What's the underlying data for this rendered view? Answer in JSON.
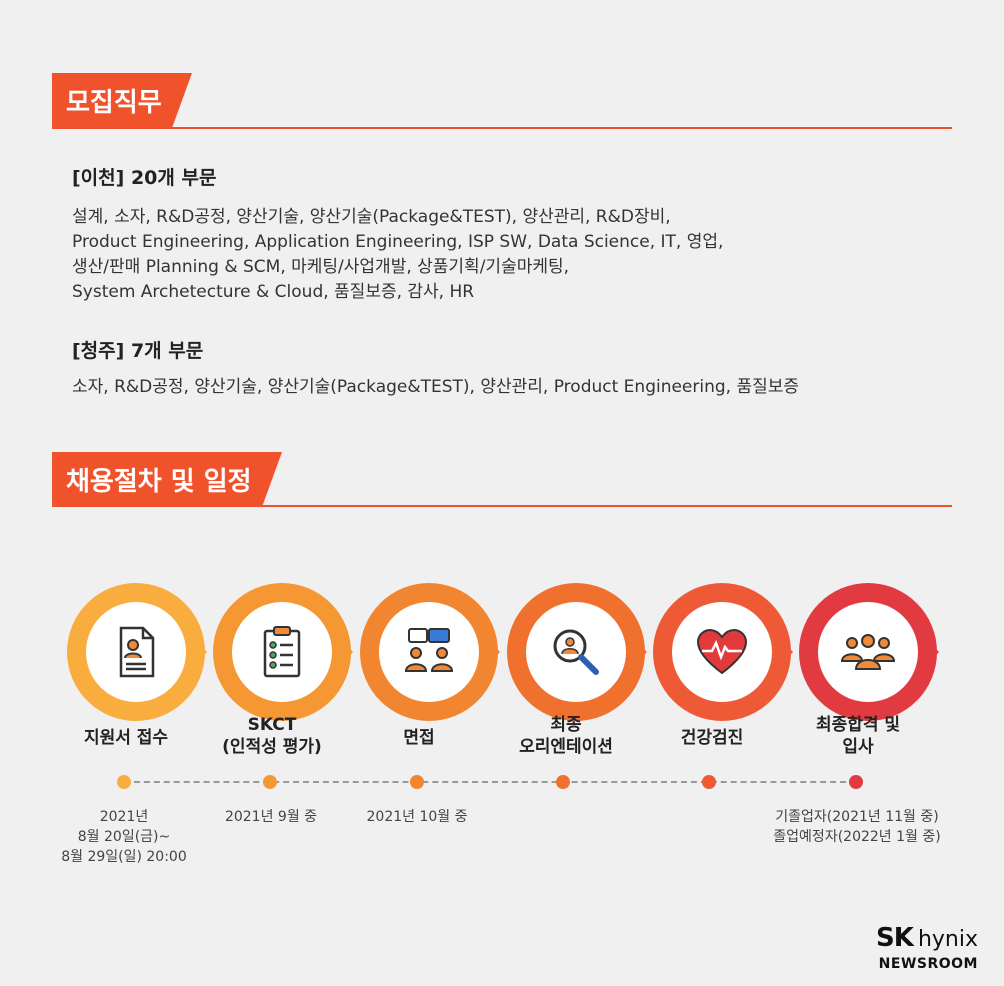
{
  "sections": {
    "jobs_title": "모집직무",
    "process_title": "채용절차 및 일정"
  },
  "icheon": {
    "title": "[이천] 20개 부문",
    "lines": [
      "설계, 소자, R&D공정, 양산기술, 양산기술(Package&TEST), 양산관리, R&D장비,",
      "Product Engineering, Application Engineering, ISP SW, Data Science, IT, 영업,",
      "생산/판매 Planning & SCM, 마케팅/사업개발, 상품기획/기술마케팅,",
      "System Archetecture & Cloud, 품질보증, 감사, HR"
    ]
  },
  "cheongju": {
    "title": "[청주] 7개 부문",
    "line": "소자, R&D공정, 양산기술, 양산기술(Package&TEST), 양산관리, Product Engineering, 품질보증"
  },
  "steps": [
    {
      "label1": "지원서 접수",
      "label2": "",
      "icon": "document-user-icon",
      "color": "#f9ad3f",
      "date": [
        "2021년",
        "8월 20일(금)~",
        "8월 29일(일) 20:00"
      ]
    },
    {
      "label1": "SKCT",
      "label2": "(인적성 평가)",
      "icon": "clipboard-checklist-icon",
      "color": "#f59834",
      "date": [
        "2021년 9월 중",
        "",
        ""
      ]
    },
    {
      "label1": "면접",
      "label2": "",
      "icon": "interview-people-icon",
      "color": "#f28530",
      "date": [
        "2021년 10월 중",
        "",
        ""
      ]
    },
    {
      "label1": "최종",
      "label2": "오리엔테이션",
      "icon": "magnifier-user-icon",
      "color": "#f0702e",
      "date": [
        "",
        "",
        ""
      ]
    },
    {
      "label1": "건강검진",
      "label2": "",
      "icon": "heart-pulse-icon",
      "color": "#ee5a35",
      "date": [
        "",
        "",
        ""
      ]
    },
    {
      "label1": "최종합격 및",
      "label2": "입사",
      "icon": "group-people-icon",
      "color": "#e13b41",
      "date": [
        "기졸업자(2021년 11월 중)",
        "졸업예정자(2022년 1월 중)",
        ""
      ]
    }
  ],
  "logo": {
    "brand_sk": "SK",
    "brand_hynix": "hynix",
    "sub": "NEWSROOM"
  }
}
